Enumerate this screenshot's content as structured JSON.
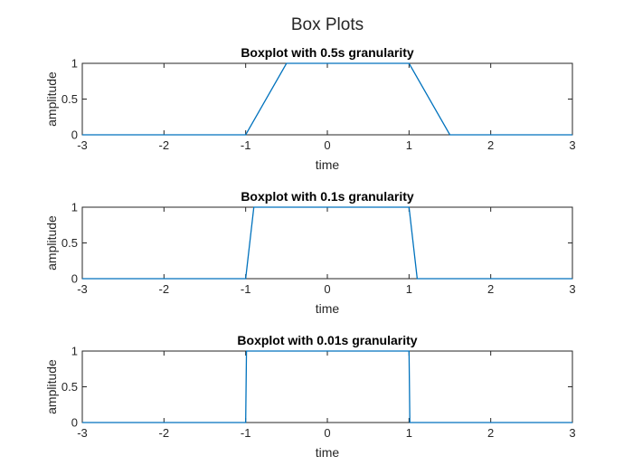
{
  "figure": {
    "title": "Box Plots"
  },
  "chart_data": [
    {
      "type": "line",
      "title": "Boxplot with 0.5s granularity",
      "xlabel": "time",
      "ylabel": "amplitude",
      "xlim": [
        -3,
        3
      ],
      "ylim": [
        0,
        1
      ],
      "xticks": [
        -3,
        -2,
        -1,
        0,
        1,
        2,
        3
      ],
      "yticks": [
        0,
        0.5,
        1
      ],
      "grid": false,
      "color": "#0072BD",
      "x": [
        -3,
        -1,
        -0.5,
        1,
        1.5,
        3
      ],
      "y": [
        0,
        0,
        1,
        1,
        0,
        0
      ]
    },
    {
      "type": "line",
      "title": "Boxplot with 0.1s granularity",
      "xlabel": "time",
      "ylabel": "amplitude",
      "xlim": [
        -3,
        3
      ],
      "ylim": [
        0,
        1
      ],
      "xticks": [
        -3,
        -2,
        -1,
        0,
        1,
        2,
        3
      ],
      "yticks": [
        0,
        0.5,
        1
      ],
      "grid": false,
      "color": "#0072BD",
      "x": [
        -3,
        -1,
        -0.9,
        1,
        1.1,
        3
      ],
      "y": [
        0,
        0,
        1,
        1,
        0,
        0
      ]
    },
    {
      "type": "line",
      "title": "Boxplot with 0.01s granularity",
      "xlabel": "time",
      "ylabel": "amplitude",
      "xlim": [
        -3,
        3
      ],
      "ylim": [
        0,
        1
      ],
      "xticks": [
        -3,
        -2,
        -1,
        0,
        1,
        2,
        3
      ],
      "yticks": [
        0,
        0.5,
        1
      ],
      "grid": false,
      "color": "#0072BD",
      "x": [
        -3,
        -1,
        -0.99,
        1,
        1.01,
        3
      ],
      "y": [
        0,
        0,
        1,
        1,
        0,
        0
      ]
    }
  ]
}
